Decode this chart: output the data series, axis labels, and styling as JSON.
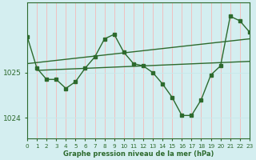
{
  "xlabel": "Graphe pression niveau de la mer (hPa)",
  "bg_color": "#d4eef0",
  "grid_color_v": "#f0c0c0",
  "grid_color_h": "#c8e8ea",
  "line_color": "#2d6a2d",
  "xmin": 0,
  "xmax": 23,
  "ymin": 1023.55,
  "ymax": 1026.55,
  "yticks": [
    1024,
    1025
  ],
  "xticks": [
    0,
    1,
    2,
    3,
    4,
    5,
    6,
    7,
    8,
    9,
    10,
    11,
    12,
    13,
    14,
    15,
    16,
    17,
    18,
    19,
    20,
    21,
    22,
    23
  ],
  "main_x": [
    0,
    1,
    2,
    3,
    4,
    5,
    6,
    7,
    8,
    9,
    10,
    11,
    12,
    13,
    14,
    15,
    16,
    17,
    18,
    19,
    20,
    21,
    22,
    23
  ],
  "main_y": [
    1025.8,
    1025.1,
    1024.85,
    1024.85,
    1024.65,
    1024.8,
    1025.1,
    1025.35,
    1025.75,
    1025.85,
    1025.45,
    1025.2,
    1025.15,
    1025.0,
    1024.75,
    1024.45,
    1024.05,
    1024.05,
    1024.4,
    1024.95,
    1025.15,
    1026.25,
    1026.15,
    1025.9
  ],
  "trend1_x": [
    0,
    23
  ],
  "trend1_y": [
    1025.2,
    1025.75
  ],
  "trend2_x": [
    1,
    23
  ],
  "trend2_y": [
    1025.05,
    1025.25
  ]
}
